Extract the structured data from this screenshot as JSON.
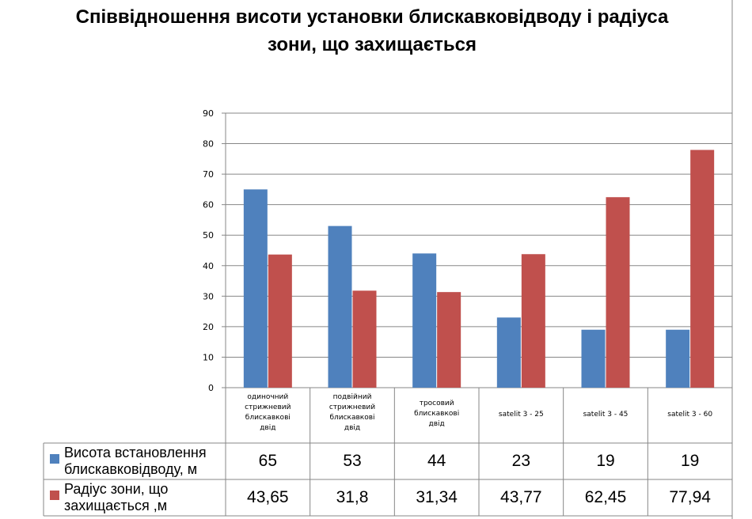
{
  "chart_data": {
    "type": "bar",
    "title": "Співвідношення висоти установки блискавковідводу і радіуса зони, що захищається",
    "title_lines": [
      "Співвідношення висоти установки блискавковідводу і радіуса",
      "зони, що захищається"
    ],
    "categories": [
      [
        "одиночний",
        "стрижневий",
        "блискавкові",
        "двід"
      ],
      [
        "подвійний",
        "стрижневий",
        "блискавкові",
        "двід"
      ],
      [
        "тросовий",
        "блискавкові",
        "двід"
      ],
      [
        "satelit 3 - 25"
      ],
      [
        "satelit 3 - 45"
      ],
      [
        "satelit 3 - 60"
      ]
    ],
    "series": [
      {
        "name": "Висота встановлення блискавковідводу, м",
        "name_lines": [
          "Висота встановлення",
          "блискавковідводу, м"
        ],
        "color": "#4f81bd",
        "values": [
          65,
          53,
          44,
          23,
          19,
          19
        ],
        "labels": [
          "65",
          "53",
          "44",
          "23",
          "19",
          "19"
        ]
      },
      {
        "name": "Радіус зони, що захищається ,м",
        "name_lines": [
          "Радіус зони, що",
          "захищається ,м"
        ],
        "color": "#c0504d",
        "values": [
          43.65,
          31.8,
          31.34,
          43.77,
          62.45,
          77.94
        ],
        "labels": [
          "43,65",
          "31,8",
          "31,34",
          "43,77",
          "62,45",
          "77,94"
        ]
      }
    ],
    "ylim": [
      0,
      90
    ],
    "yticks": [
      0,
      10,
      20,
      30,
      40,
      50,
      60,
      70,
      80,
      90
    ],
    "grid": true,
    "data_table": true
  }
}
